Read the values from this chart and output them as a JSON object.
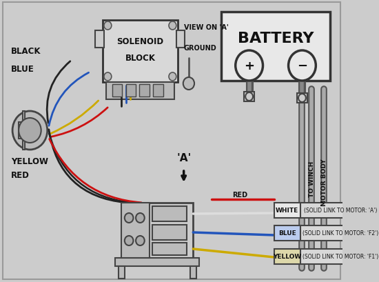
{
  "bg_color": "#cccccc",
  "line_color": "#333333",
  "text_color": "#111111",
  "battery_text": "BATTERY",
  "solenoid_text1": "SOLENOID",
  "solenoid_text2": "BLOCK",
  "view_on_a": "VIEW ON 'A'",
  "ground_text": "GROUND",
  "black_label": "BLACK",
  "blue_label": "BLUE",
  "yellow_label": "YELLOW",
  "red_label": "RED",
  "a_label": "'A'",
  "wire_labels": [
    "WHITE",
    "BLUE",
    "YELLOW"
  ],
  "motor_labels": [
    "(SOLID LINK TO MOTOR: 'A')",
    "(SOLID LINK TO MOTOR: 'F2')",
    "(SOLID LINK TO MOTOR: 'F1')"
  ],
  "red_wire_label": "RED",
  "to_winch_label": "TO WINCH",
  "motor_body_label": "MOTOR BODY",
  "box_face": "#e0e0e0",
  "box_edge": "#333333",
  "terminal_face": "#d0d0d0",
  "wire_red": "#cc1111",
  "wire_black": "#222222",
  "wire_blue": "#2255bb",
  "wire_yellow": "#ccaa00",
  "wire_white": "#dddddd"
}
